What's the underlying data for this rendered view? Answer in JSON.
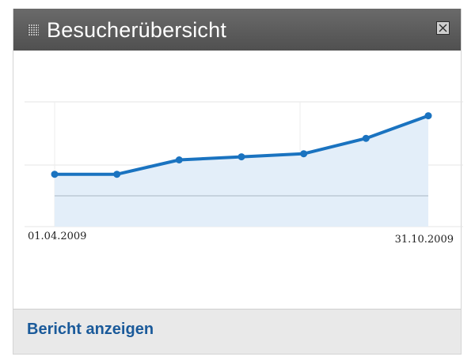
{
  "widget": {
    "title": "Besucherübersicht",
    "report_link": "Bericht anzeigen"
  },
  "chart_data": {
    "type": "area",
    "x": [
      "01.04.2009",
      "",
      "",
      "",
      "",
      "",
      "31.10.2009"
    ],
    "series": [
      {
        "values": [
          51,
          51,
          65,
          68,
          71,
          86,
          108
        ]
      }
    ],
    "xtick_labels": [
      "01.04.2009",
      "31.10.2009"
    ],
    "ylim": [
      0,
      120
    ],
    "reference_line": 30,
    "grid": true,
    "line_color": "#1a73c0",
    "fill_color": "#e3eef9"
  }
}
